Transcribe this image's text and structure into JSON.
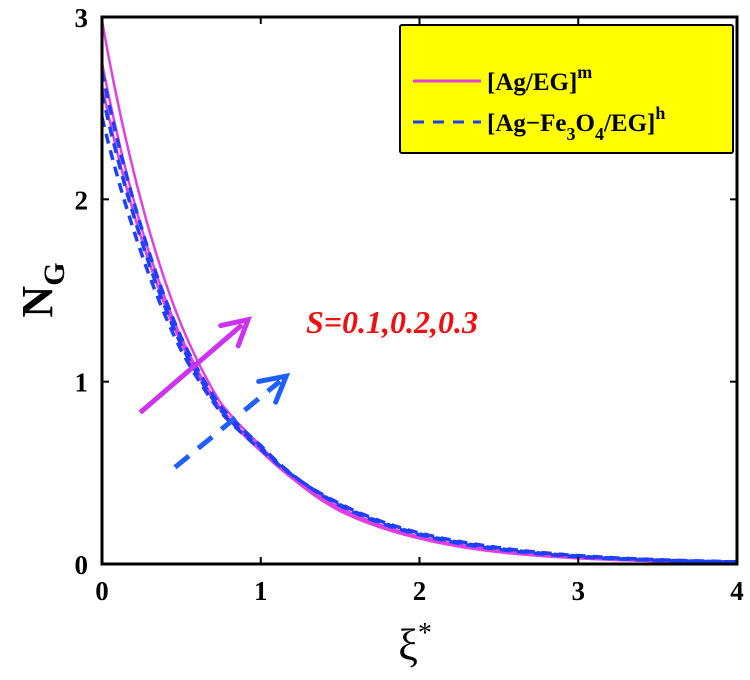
{
  "chart_data": {
    "type": "line",
    "title": "",
    "xlabel": "ξ*",
    "ylabel": "N_G",
    "xlim": [
      0,
      4
    ],
    "ylim": [
      0,
      3
    ],
    "xticks": [
      "0",
      "1",
      "2",
      "3",
      "4"
    ],
    "yticks": [
      "0",
      "1",
      "2",
      "3"
    ],
    "grid": false,
    "legend_position": "upper right",
    "legend": [
      {
        "label": "[Ag/EG]",
        "superscript": "m",
        "style": "solid",
        "color": "#e040e0"
      },
      {
        "label": "[Ag−Fe3O4/EG]",
        "superscript": "h",
        "style": "dashed",
        "color": "#1f3fff"
      }
    ],
    "annotation": {
      "text": "S=0.1,0.2,0.3",
      "color": "#ee1111"
    },
    "x": [
      0,
      0.25,
      0.5,
      0.75,
      1.0,
      1.5,
      2.0,
      2.5,
      3.0,
      3.5,
      4.0
    ],
    "series": [
      {
        "name": "[Ag/EG]^m S=0.1",
        "style": "solid",
        "color": "#e040e0",
        "values": [
          2.62,
          1.78,
          1.21,
          0.84,
          0.62,
          0.31,
          0.15,
          0.075,
          0.037,
          0.018,
          0.009
        ]
      },
      {
        "name": "[Ag/EG]^m S=0.2",
        "style": "solid",
        "color": "#e040e0",
        "values": [
          2.75,
          1.84,
          1.24,
          0.85,
          0.63,
          0.3,
          0.145,
          0.07,
          0.034,
          0.016,
          0.008
        ]
      },
      {
        "name": "[Ag/EG]^m S=0.3",
        "style": "solid",
        "color": "#e040e0",
        "values": [
          2.98,
          1.98,
          1.31,
          0.88,
          0.65,
          0.29,
          0.14,
          0.065,
          0.031,
          0.015,
          0.007
        ]
      },
      {
        "name": "[Ag-Fe3O4/EG]^h S=0.1",
        "style": "dashed",
        "color": "#1f3fff",
        "values": [
          2.45,
          1.7,
          1.17,
          0.83,
          0.63,
          0.33,
          0.17,
          0.09,
          0.046,
          0.024,
          0.012
        ]
      },
      {
        "name": "[Ag-Fe3O4/EG]^h S=0.2",
        "style": "dashed",
        "color": "#1f3fff",
        "values": [
          2.58,
          1.77,
          1.2,
          0.84,
          0.64,
          0.325,
          0.165,
          0.085,
          0.043,
          0.022,
          0.011
        ]
      },
      {
        "name": "[Ag-Fe3O4/EG]^h S=0.3",
        "style": "dashed",
        "color": "#1f3fff",
        "values": [
          2.7,
          1.84,
          1.24,
          0.86,
          0.65,
          0.32,
          0.16,
          0.08,
          0.04,
          0.02,
          0.01
        ]
      }
    ],
    "arrows": [
      {
        "style": "solid",
        "color": "#cc33ee",
        "from": [
          0.24,
          0.83
        ],
        "to": [
          0.92,
          1.34
        ]
      },
      {
        "style": "dashed",
        "color": "#1f5fff",
        "from": [
          0.46,
          0.53
        ],
        "to": [
          1.16,
          1.03
        ]
      }
    ]
  },
  "legend": {
    "item1_label": "[Ag/EG]",
    "item1_sup": "m",
    "item2_prefix": "[Ag−Fe",
    "item2_sub1": "3",
    "item2_mid": "O",
    "item2_sub2": "4",
    "item2_suffix": "/EG]",
    "item2_sup": "h",
    "background": "#ffff00"
  },
  "axes": {
    "x_title": "ξ",
    "x_title_sup": "*",
    "y_title": "N",
    "y_title_sub": "G"
  },
  "annotation_text": "S=0.1,0.2,0.3"
}
